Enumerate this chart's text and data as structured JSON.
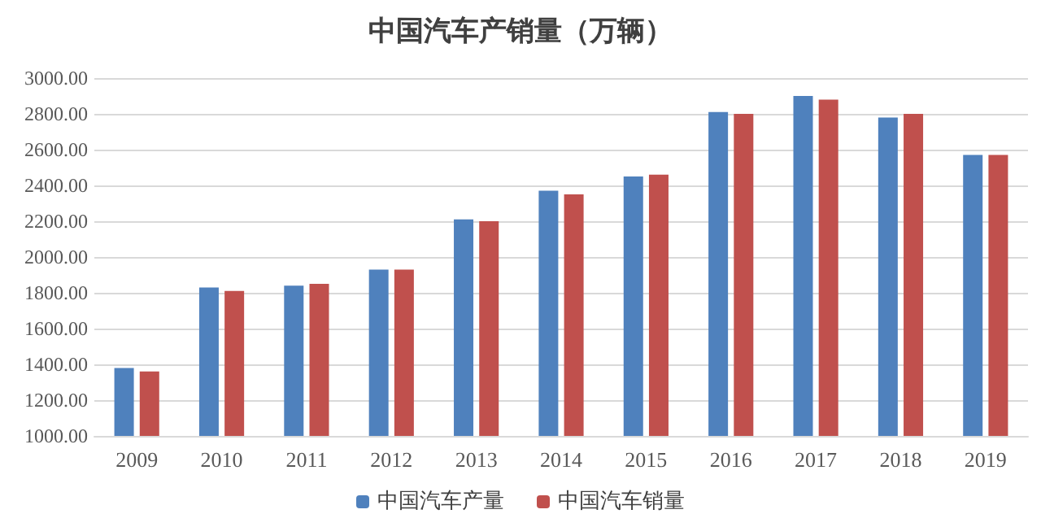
{
  "chart_data": {
    "type": "bar",
    "title": "中国汽车产销量（万辆）",
    "categories": [
      "2009",
      "2010",
      "2011",
      "2012",
      "2013",
      "2014",
      "2015",
      "2016",
      "2017",
      "2018",
      "2019"
    ],
    "series": [
      {
        "name": "中国汽车产量",
        "color": "#4f81bd",
        "values": [
          1380,
          1830,
          1840,
          1930,
          2210,
          2370,
          2450,
          2810,
          2900,
          2780,
          2570
        ]
      },
      {
        "name": "中国汽车销量",
        "color": "#c0504d",
        "values": [
          1360,
          1810,
          1850,
          1930,
          2200,
          2350,
          2460,
          2800,
          2880,
          2800,
          2570
        ]
      }
    ],
    "ylim": [
      1000,
      3000
    ],
    "yticks": [
      {
        "value": 1000,
        "label": "1000.00"
      },
      {
        "value": 1200,
        "label": "1200.00"
      },
      {
        "value": 1400,
        "label": "1400.00"
      },
      {
        "value": 1600,
        "label": "1600.00"
      },
      {
        "value": 1800,
        "label": "1800.00"
      },
      {
        "value": 2000,
        "label": "2000.00"
      },
      {
        "value": 2200,
        "label": "2200.00"
      },
      {
        "value": 2400,
        "label": "2400.00"
      },
      {
        "value": 2600,
        "label": "2600.00"
      },
      {
        "value": 2800,
        "label": "2800.00"
      },
      {
        "value": 3000,
        "label": "3000.00"
      }
    ],
    "grid": "y",
    "legend": "bottom"
  }
}
